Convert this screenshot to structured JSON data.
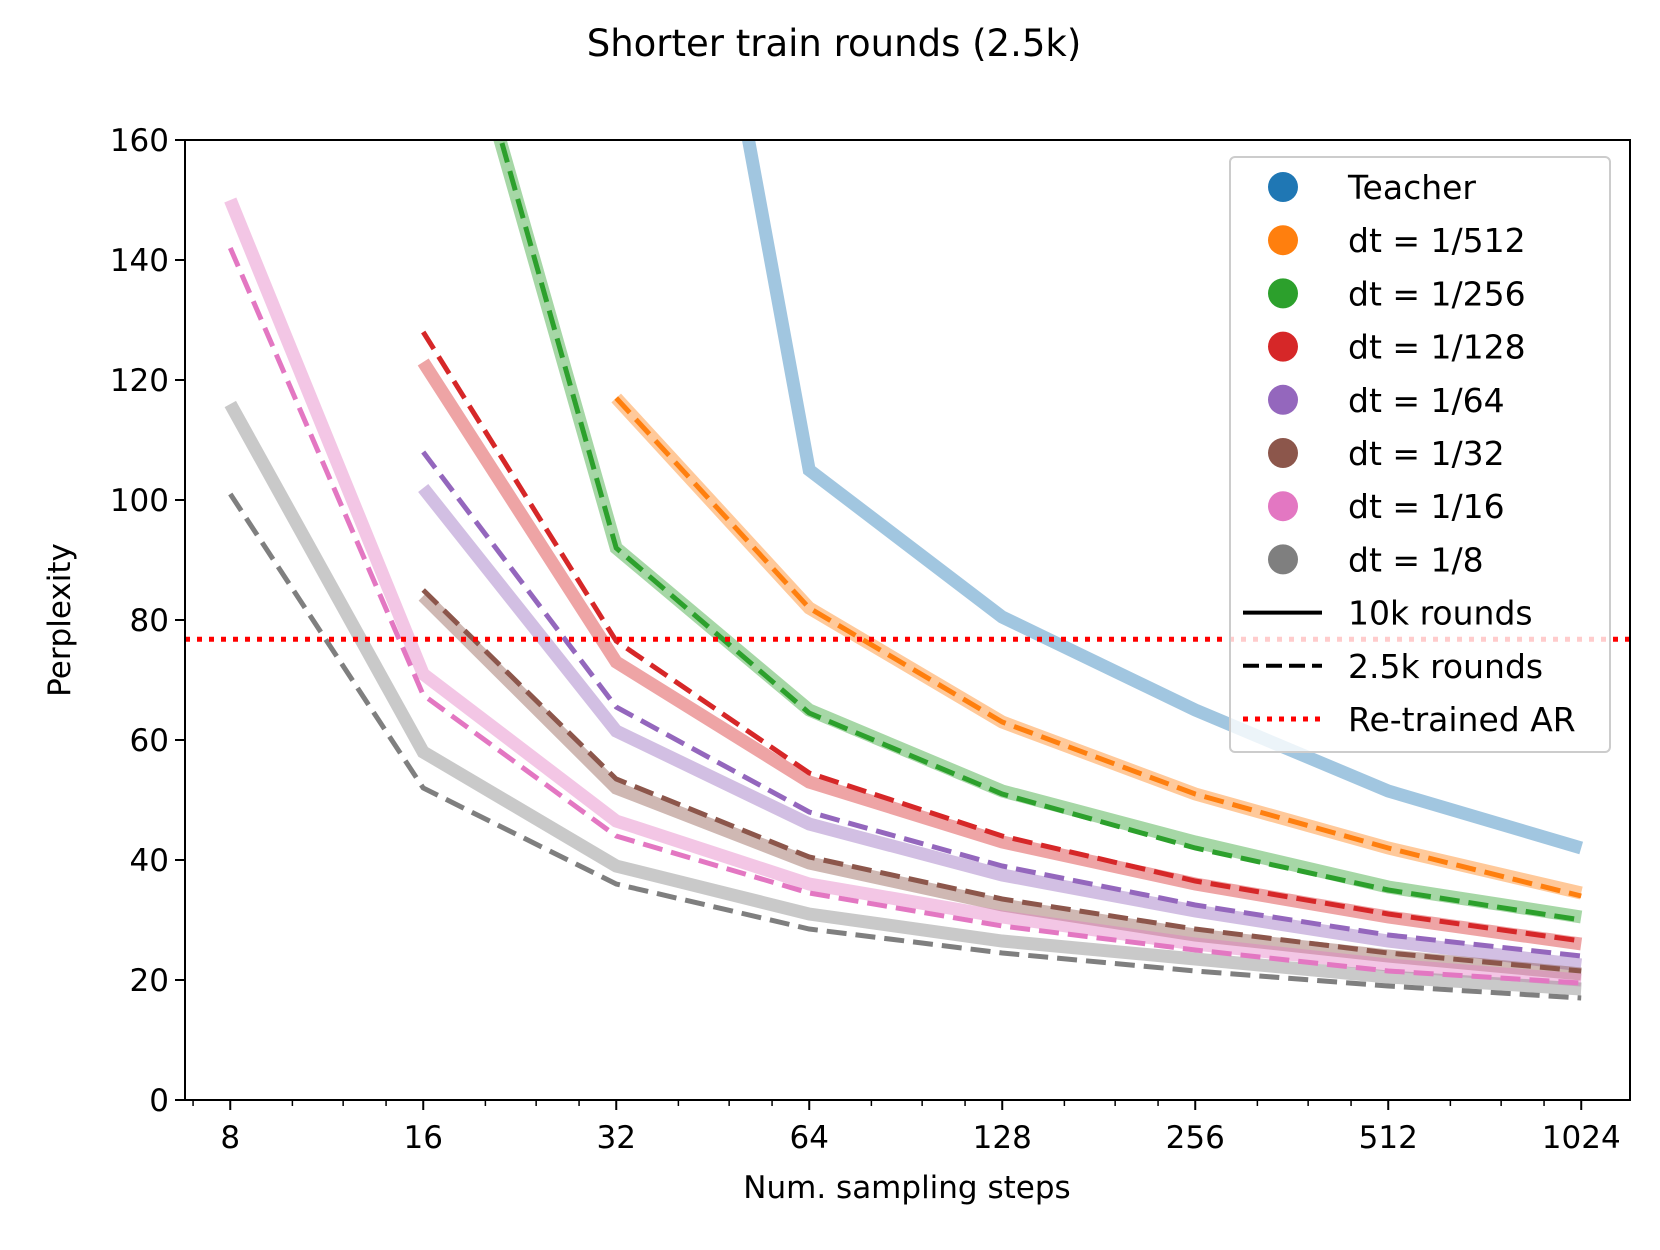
{
  "chart_data": {
    "type": "line",
    "title": "Shorter train rounds (2.5k)",
    "xlabel": "Num. sampling steps",
    "ylabel": "Perplexity",
    "xscale": "log2",
    "xlim": [
      6.8,
      1220
    ],
    "ylim": [
      0,
      160
    ],
    "x": [
      8,
      16,
      32,
      64,
      128,
      256,
      512,
      1024
    ],
    "x_tick_labels": [
      "8",
      "16",
      "32",
      "64",
      "128",
      "256",
      "512",
      "1024"
    ],
    "y_ticks": [
      0,
      20,
      40,
      60,
      80,
      100,
      120,
      140,
      160
    ],
    "y_tick_labels": [
      "0",
      "20",
      "40",
      "60",
      "80",
      "100",
      "120",
      "140",
      "160"
    ],
    "grid": false,
    "legend_position": "top-right",
    "series": [
      {
        "name": "Teacher",
        "color": "#1f77b4",
        "solid": [
          null,
          null,
          280,
          105,
          80.5,
          65,
          51.5,
          42
        ],
        "dashed": null
      },
      {
        "name": "dt = 1/512",
        "color": "#ff7f0e",
        "solid": [
          null,
          null,
          117,
          82,
          63,
          51,
          42,
          34.5
        ],
        "dashed": [
          null,
          null,
          117,
          82,
          63,
          51,
          42,
          34
        ]
      },
      {
        "name": "dt = 1/256",
        "color": "#2ca02c",
        "solid": [
          null,
          205,
          92,
          65,
          51.5,
          43,
          35.5,
          30.5
        ],
        "dashed": [
          null,
          206,
          92,
          64.5,
          51,
          42,
          35,
          30
        ]
      },
      {
        "name": "dt = 1/128",
        "color": "#d62728",
        "solid": [
          null,
          123,
          73,
          53,
          43,
          36,
          30.5,
          26
        ],
        "dashed": [
          null,
          128,
          76.5,
          54.5,
          44,
          36.5,
          31,
          26.5
        ]
      },
      {
        "name": "dt = 1/64",
        "color": "#9467bd",
        "solid": [
          null,
          102,
          61.5,
          46,
          37.5,
          31.5,
          26.5,
          22.5
        ],
        "dashed": [
          null,
          108,
          65.5,
          48,
          39,
          32.5,
          27.5,
          24
        ]
      },
      {
        "name": "dt = 1/32",
        "color": "#8c564b",
        "solid": [
          null,
          84,
          52,
          39.5,
          32.5,
          27.5,
          24,
          21
        ],
        "dashed": [
          null,
          85,
          53.5,
          40.5,
          33.5,
          28.5,
          24.5,
          21.5
        ]
      },
      {
        "name": "dt = 1/16",
        "color": "#e377c2",
        "solid": [
          150,
          71,
          46.5,
          36,
          30.5,
          26,
          22.5,
          20
        ],
        "dashed": [
          142,
          67.5,
          44,
          34.5,
          29,
          25,
          21.5,
          19.5
        ]
      },
      {
        "name": "dt = 1/8",
        "color": "#7f7f7f",
        "solid": [
          116,
          58,
          39,
          31,
          26.5,
          23.5,
          20.5,
          18.5
        ],
        "dashed": [
          101,
          52,
          36,
          28.5,
          24.5,
          21.5,
          19,
          17
        ]
      }
    ],
    "reference_lines": [
      {
        "name": "Re-trained AR",
        "y": 76.8,
        "color": "#ff0000",
        "style": "dotted"
      }
    ],
    "legend": {
      "style_entries": [
        {
          "label": "10k rounds",
          "style": "solid"
        },
        {
          "label": "2.5k rounds",
          "style": "dashed"
        },
        {
          "label": "Re-trained AR",
          "style": "dotted",
          "color": "#ff0000"
        }
      ]
    }
  }
}
